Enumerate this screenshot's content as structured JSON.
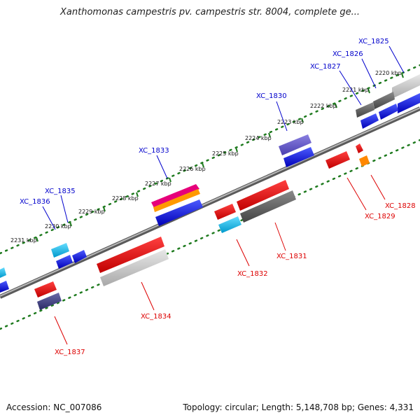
{
  "header": {
    "title": "Xanthomonas campestris pv. campestris str. 8004, complete ge..."
  },
  "footer": {
    "accession": "Accession: NC_007086",
    "topology": "Topology: circular; Length: 5,148,708 bp; Genes: 4,331"
  },
  "colors": {
    "forward_label": "#0000cc",
    "reverse_label": "#dd0000",
    "ruler_dots": "#1e7a1e",
    "backbone": "#808080"
  },
  "diagram": {
    "ruler_ticks": [
      {
        "label": "2220 kbp"
      },
      {
        "label": "2221 kbp"
      },
      {
        "label": "2222 kbp"
      },
      {
        "label": "2223 kbp"
      },
      {
        "label": "2224 kbp"
      },
      {
        "label": "2225 kbp"
      },
      {
        "label": "2226 kbp"
      },
      {
        "label": "2227 kbp"
      },
      {
        "label": "2228 kbp"
      },
      {
        "label": "2229 kbp"
      },
      {
        "label": "2230 kbp"
      },
      {
        "label": "2231 kbp"
      }
    ],
    "forward_genes": [
      {
        "label": "XC_1825"
      },
      {
        "label": "XC_1826"
      },
      {
        "label": "XC_1827"
      },
      {
        "label": "XC_1830"
      },
      {
        "label": "XC_1833"
      },
      {
        "label": "XC_1835"
      },
      {
        "label": "XC_1836"
      }
    ],
    "reverse_genes": [
      {
        "label": "XC_1828"
      },
      {
        "label": "XC_1829"
      },
      {
        "label": "XC_1831"
      },
      {
        "label": "XC_1832"
      },
      {
        "label": "XC_1834"
      },
      {
        "label": "XC_1837"
      }
    ]
  }
}
